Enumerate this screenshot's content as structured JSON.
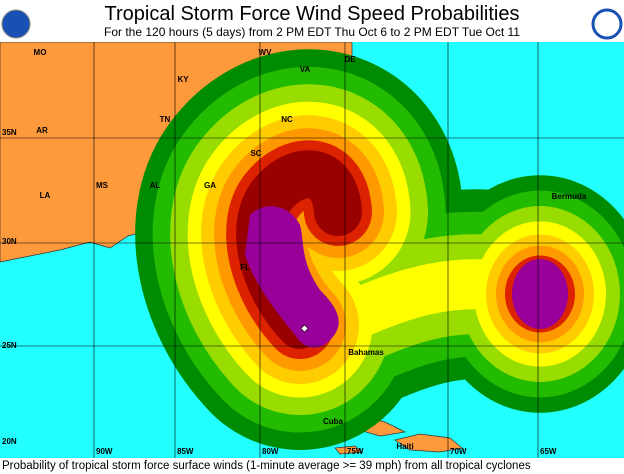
{
  "header": {
    "title": "Tropical Storm Force Wind Speed Probabilities",
    "subtitle": "For the 120 hours (5 days) from 2 PM EDT Thu Oct 6 to 2 PM EDT Tue Oct 11"
  },
  "map": {
    "state_labels": [
      "MO",
      "WV",
      "KY",
      "VA",
      "DE",
      "AR",
      "TN",
      "NC",
      "SC",
      "MS",
      "AL",
      "GA",
      "LA",
      "FL"
    ],
    "places": [
      "Bermuda",
      "Bahamas",
      "Cuba",
      "Haiti"
    ],
    "lat_labels": [
      "35N",
      "30N",
      "25N",
      "20N"
    ],
    "lon_labels": [
      "90W",
      "85W",
      "80W",
      "75W",
      "70W",
      "65W"
    ]
  },
  "footer": {
    "text": "Probability of tropical storm force surface winds (1-minute average >= 39 mph) from all tropical cyclones"
  }
}
